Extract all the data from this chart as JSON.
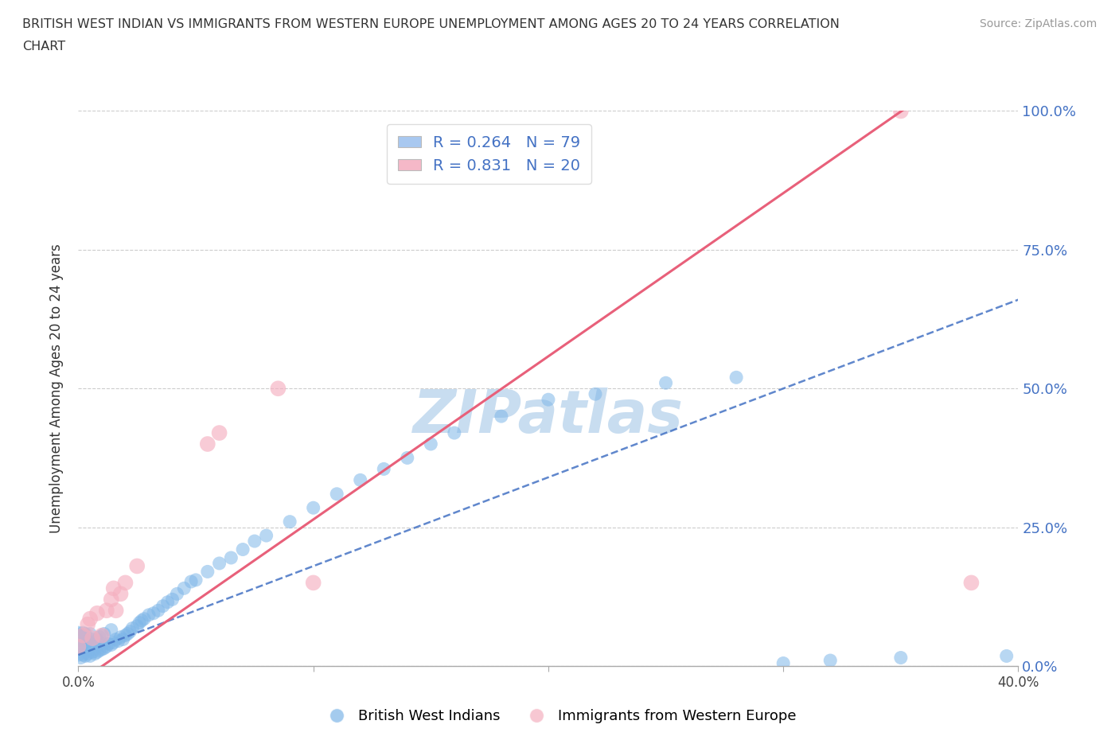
{
  "title": "BRITISH WEST INDIAN VS IMMIGRANTS FROM WESTERN EUROPE UNEMPLOYMENT AMONG AGES 20 TO 24 YEARS CORRELATION\nCHART",
  "source": "Source: ZipAtlas.com",
  "ylabel": "Unemployment Among Ages 20 to 24 years",
  "xlim": [
    0.0,
    0.4
  ],
  "ylim": [
    0.0,
    1.0
  ],
  "xticks": [
    0.0,
    0.1,
    0.2,
    0.3,
    0.4
  ],
  "yticks": [
    0.0,
    0.25,
    0.5,
    0.75,
    1.0
  ],
  "yticklabels": [
    "0.0%",
    "25.0%",
    "50.0%",
    "75.0%",
    "100.0%"
  ],
  "blue_color": "#7eb6e8",
  "pink_color": "#f5b0c0",
  "trendline_blue_color": "#4472c4",
  "trendline_pink_color": "#e8607a",
  "watermark": "ZIPatlas",
  "watermark_color": "#c8ddf0",
  "legend1_color": "#a8c8f0",
  "legend2_color": "#f5b8c8",
  "blue_trendline": [
    0.0,
    0.02,
    0.65
  ],
  "pink_trendline": [
    0.0,
    0.02,
    2.65
  ],
  "blue_x": [
    0.0,
    0.0,
    0.0,
    0.001,
    0.001,
    0.001,
    0.002,
    0.002,
    0.002,
    0.003,
    0.003,
    0.003,
    0.004,
    0.004,
    0.005,
    0.005,
    0.005,
    0.006,
    0.006,
    0.007,
    0.007,
    0.008,
    0.008,
    0.009,
    0.009,
    0.01,
    0.01,
    0.011,
    0.011,
    0.012,
    0.013,
    0.014,
    0.014,
    0.015,
    0.016,
    0.017,
    0.018,
    0.019,
    0.02,
    0.021,
    0.022,
    0.023,
    0.025,
    0.026,
    0.027,
    0.028,
    0.03,
    0.032,
    0.034,
    0.036,
    0.038,
    0.04,
    0.042,
    0.045,
    0.048,
    0.05,
    0.055,
    0.06,
    0.065,
    0.07,
    0.075,
    0.08,
    0.09,
    0.1,
    0.11,
    0.12,
    0.13,
    0.14,
    0.15,
    0.16,
    0.18,
    0.2,
    0.22,
    0.25,
    0.28,
    0.3,
    0.32,
    0.35,
    0.395
  ],
  "blue_y": [
    0.02,
    0.04,
    0.06,
    0.015,
    0.035,
    0.055,
    0.02,
    0.04,
    0.06,
    0.018,
    0.038,
    0.058,
    0.022,
    0.045,
    0.018,
    0.038,
    0.058,
    0.025,
    0.048,
    0.022,
    0.042,
    0.025,
    0.048,
    0.028,
    0.052,
    0.03,
    0.055,
    0.032,
    0.058,
    0.035,
    0.04,
    0.038,
    0.065,
    0.042,
    0.048,
    0.045,
    0.052,
    0.048,
    0.055,
    0.058,
    0.062,
    0.068,
    0.072,
    0.078,
    0.082,
    0.085,
    0.092,
    0.095,
    0.1,
    0.108,
    0.115,
    0.12,
    0.13,
    0.14,
    0.152,
    0.155,
    0.17,
    0.185,
    0.195,
    0.21,
    0.225,
    0.235,
    0.26,
    0.285,
    0.31,
    0.335,
    0.355,
    0.375,
    0.4,
    0.42,
    0.45,
    0.48,
    0.49,
    0.51,
    0.52,
    0.005,
    0.01,
    0.015,
    0.018
  ],
  "pink_x": [
    0.0,
    0.002,
    0.004,
    0.005,
    0.006,
    0.008,
    0.01,
    0.012,
    0.014,
    0.015,
    0.016,
    0.018,
    0.02,
    0.025,
    0.055,
    0.06,
    0.35,
    0.38,
    0.085,
    0.1
  ],
  "pink_y": [
    0.035,
    0.055,
    0.075,
    0.085,
    0.05,
    0.095,
    0.055,
    0.1,
    0.12,
    0.14,
    0.1,
    0.13,
    0.15,
    0.18,
    0.4,
    0.42,
    1.0,
    0.15,
    0.5,
    0.15
  ]
}
